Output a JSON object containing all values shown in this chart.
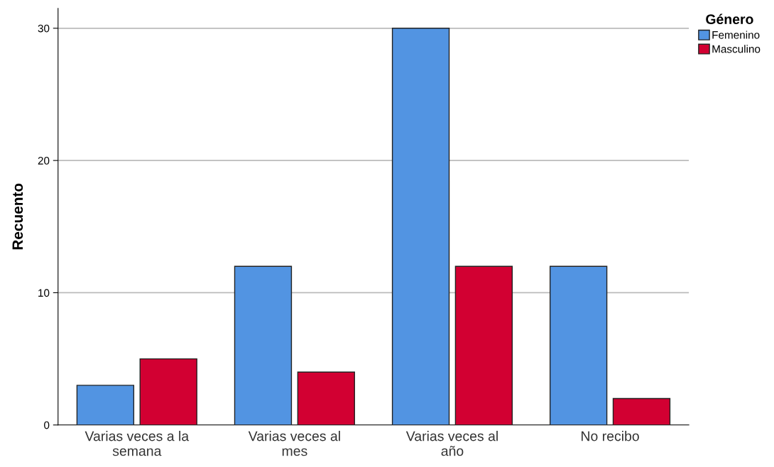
{
  "chart_data": {
    "type": "bar",
    "ylabel": "Recuento",
    "legend_title": "Género",
    "categories": [
      "Varias veces a la semana",
      "Varias veces al mes",
      "Varias veces al año",
      "No recibo"
    ],
    "series": [
      {
        "name": "Femenino",
        "color": "#5294e2",
        "values": [
          3,
          12,
          30,
          12
        ]
      },
      {
        "name": "Masculino",
        "color": "#d20032",
        "values": [
          5,
          4,
          12,
          2
        ]
      }
    ],
    "ylim": [
      0,
      31.5
    ],
    "yticks": [
      0,
      10,
      20,
      30
    ],
    "grid": "y",
    "legend": "top right"
  }
}
